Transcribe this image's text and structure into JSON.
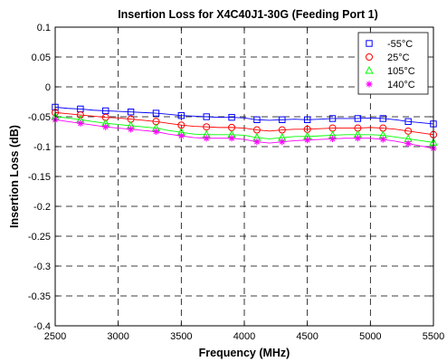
{
  "chart_data": {
    "type": "line",
    "title": "Insertion Loss for X4C40J1-30G (Feeding Port 1)",
    "xlabel": "Frequency (MHz)",
    "ylabel": "Insertion Loss (dB)",
    "xlim": [
      2500,
      5500
    ],
    "ylim": [
      -0.4,
      0.1
    ],
    "xticks": [
      "2500",
      "3000",
      "3500",
      "4000",
      "4500",
      "5000",
      "5500"
    ],
    "yticks": [
      "0.1",
      "0.05",
      "0",
      "-0.05",
      "-0.1",
      "-0.15",
      "-0.2",
      "-0.25",
      "-0.3",
      "-0.35",
      "-0.4"
    ],
    "grid": true,
    "grid_style": "dashed",
    "legend_position": "top-right",
    "x": [
      2500,
      2600,
      2700,
      2800,
      2900,
      3000,
      3100,
      3200,
      3300,
      3400,
      3500,
      3600,
      3700,
      3800,
      3900,
      4000,
      4100,
      4200,
      4300,
      4400,
      4500,
      4600,
      4700,
      4800,
      4900,
      5000,
      5100,
      5200,
      5300,
      5400,
      5500
    ],
    "series": [
      {
        "name": "-55°C",
        "color": "#0000ff",
        "marker": "square",
        "values": [
          -0.034,
          -0.036,
          -0.037,
          -0.039,
          -0.04,
          -0.041,
          -0.042,
          -0.043,
          -0.044,
          -0.046,
          -0.048,
          -0.049,
          -0.05,
          -0.051,
          -0.051,
          -0.052,
          -0.055,
          -0.056,
          -0.055,
          -0.054,
          -0.055,
          -0.054,
          -0.053,
          -0.053,
          -0.053,
          -0.052,
          -0.053,
          -0.055,
          -0.058,
          -0.06,
          -0.062
        ]
      },
      {
        "name": "25°C",
        "color": "#ff0000",
        "marker": "circle",
        "values": [
          -0.043,
          -0.045,
          -0.047,
          -0.049,
          -0.051,
          -0.052,
          -0.054,
          -0.056,
          -0.058,
          -0.061,
          -0.064,
          -0.066,
          -0.067,
          -0.068,
          -0.068,
          -0.069,
          -0.072,
          -0.074,
          -0.072,
          -0.071,
          -0.071,
          -0.07,
          -0.069,
          -0.069,
          -0.069,
          -0.068,
          -0.069,
          -0.071,
          -0.074,
          -0.077,
          -0.08
        ]
      },
      {
        "name": "105°C",
        "color": "#00ff00",
        "marker": "triangle",
        "values": [
          -0.05,
          -0.052,
          -0.055,
          -0.058,
          -0.061,
          -0.063,
          -0.065,
          -0.067,
          -0.069,
          -0.073,
          -0.076,
          -0.079,
          -0.08,
          -0.08,
          -0.08,
          -0.081,
          -0.085,
          -0.087,
          -0.085,
          -0.083,
          -0.083,
          -0.082,
          -0.081,
          -0.08,
          -0.08,
          -0.08,
          -0.081,
          -0.084,
          -0.087,
          -0.09,
          -0.093
        ]
      },
      {
        "name": "140°C",
        "color": "#ff00ff",
        "marker": "star",
        "values": [
          -0.055,
          -0.058,
          -0.061,
          -0.064,
          -0.067,
          -0.069,
          -0.071,
          -0.073,
          -0.075,
          -0.079,
          -0.082,
          -0.085,
          -0.086,
          -0.086,
          -0.086,
          -0.088,
          -0.092,
          -0.094,
          -0.092,
          -0.09,
          -0.089,
          -0.088,
          -0.087,
          -0.086,
          -0.086,
          -0.086,
          -0.088,
          -0.091,
          -0.095,
          -0.099,
          -0.103
        ]
      }
    ]
  }
}
